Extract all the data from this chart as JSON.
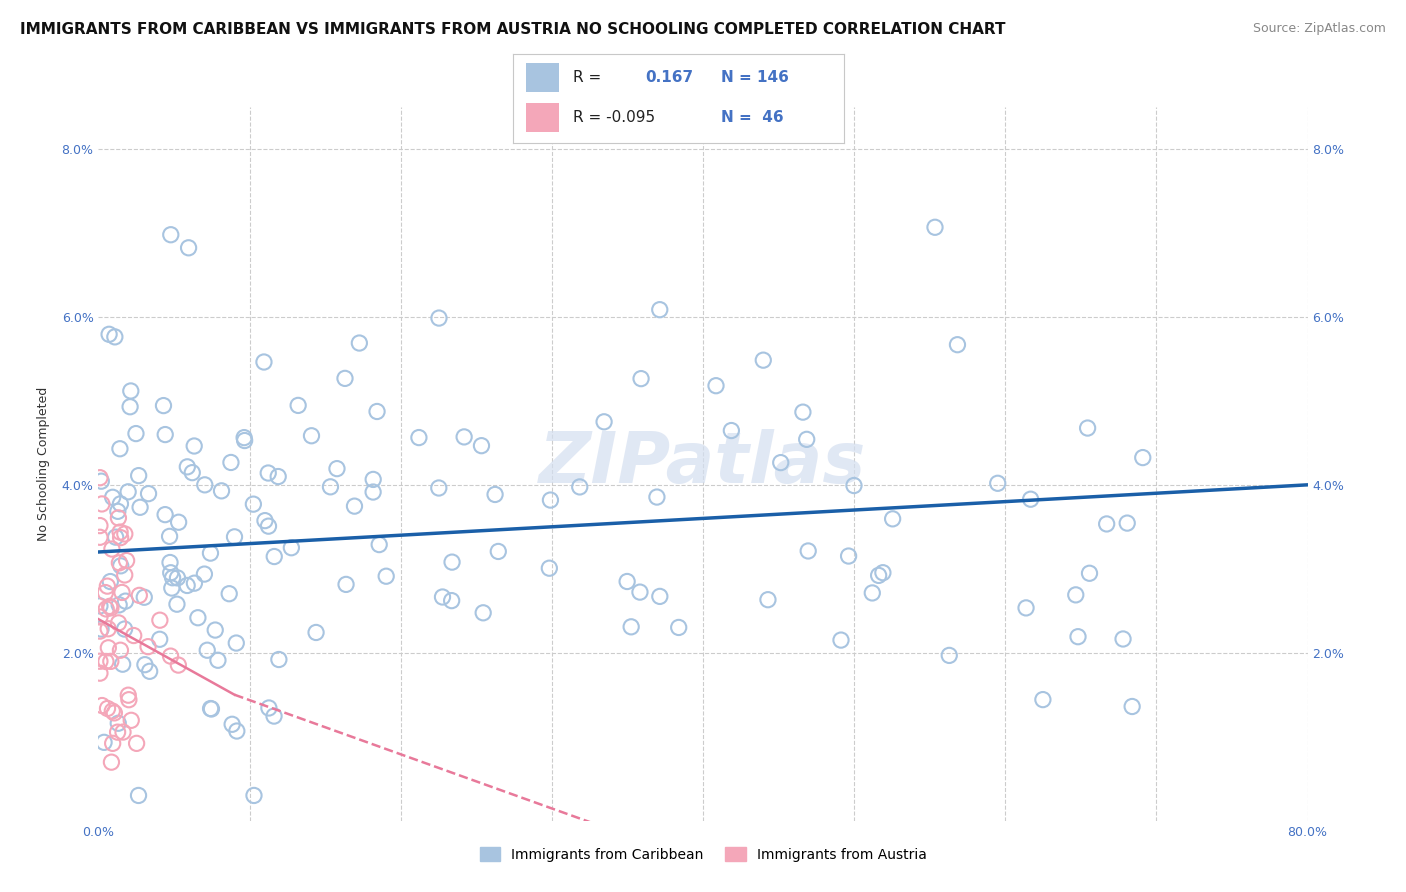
{
  "title": "IMMIGRANTS FROM CARIBBEAN VS IMMIGRANTS FROM AUSTRIA NO SCHOOLING COMPLETED CORRELATION CHART",
  "source": "Source: ZipAtlas.com",
  "ylabel_label": "No Schooling Completed",
  "caribbean_color": "#a8c4e0",
  "austria_color": "#f4a7b9",
  "caribbean_line_color": "#1a5fa8",
  "austria_line_color": "#e8799a",
  "background_color": "#ffffff",
  "watermark_color": "#d4dff0",
  "grid_color": "#cccccc",
  "axis_tick_color": "#4472c4",
  "xmin": 0.0,
  "xmax": 0.8,
  "ymin": 0.0,
  "ymax": 0.085,
  "caribbean_R": 0.167,
  "caribbean_N": 146,
  "austria_R": -0.095,
  "austria_N": 46,
  "carib_line_start_y": 0.032,
  "carib_line_end_y": 0.04,
  "austria_line_start_x": 0.0,
  "austria_line_start_y": 0.024,
  "austria_line_solid_end_x": 0.09,
  "austria_line_solid_end_y": 0.015,
  "austria_line_dash_end_x": 0.4,
  "austria_line_dash_end_y": -0.005,
  "title_fontsize": 11,
  "source_fontsize": 9,
  "axis_label_fontsize": 9,
  "tick_fontsize": 9,
  "legend_fontsize": 11,
  "watermark_fontsize": 52
}
